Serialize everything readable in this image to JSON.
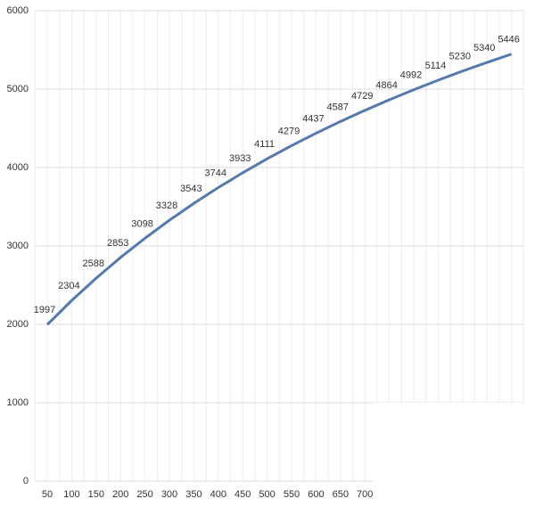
{
  "chart_data": {
    "type": "line",
    "categories": [
      "50",
      "100",
      "150",
      "200",
      "250",
      "300",
      "350",
      "400",
      "450",
      "500",
      "550",
      "600",
      "650",
      "700",
      null,
      null,
      null,
      null,
      null,
      null
    ],
    "series": [
      {
        "color": "#5479aa",
        "values": [
          1997,
          2304,
          2588,
          2853,
          3098,
          3328,
          3543,
          3744,
          3933,
          4111,
          4279,
          4437,
          4587,
          4729,
          4864,
          4992,
          5114,
          5230,
          5340,
          5446
        ]
      }
    ],
    "ylim": [
      0,
      6000
    ],
    "yticks": [
      0,
      1000,
      2000,
      3000,
      4000,
      5000,
      6000
    ],
    "grid": true,
    "data_labels": true
  }
}
